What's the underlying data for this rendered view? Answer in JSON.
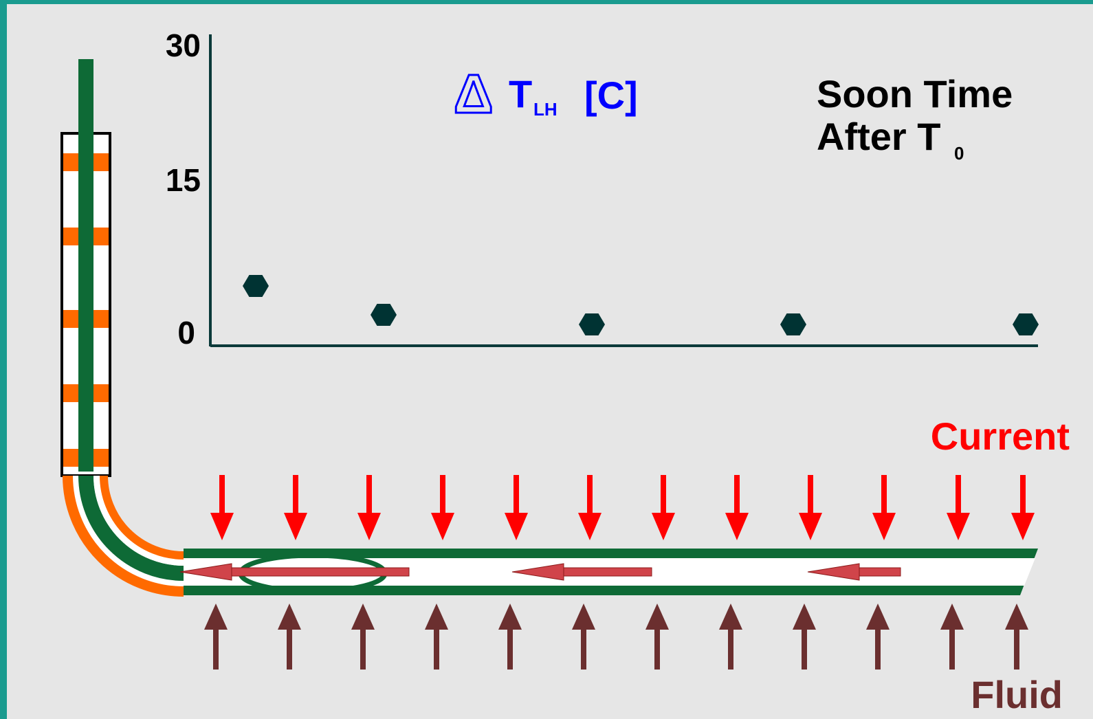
{
  "chart_data": {
    "type": "scatter",
    "title": "Soon Time",
    "title_line2": "After T",
    "title_sub": "0",
    "ylabel": "T",
    "ylabel_symbol": "Δ",
    "ylabel_sub": "LH",
    "ylabel_unit": "[C]",
    "yticks": [
      "30",
      "15",
      "0"
    ],
    "ylim": [
      0,
      30
    ],
    "grid": false,
    "points": [
      {
        "x": 1,
        "y": 5.0
      },
      {
        "x": 2,
        "y": 2.0
      },
      {
        "x": 3,
        "y": 1.0
      },
      {
        "x": 4,
        "y": 1.0
      },
      {
        "x": 5,
        "y": 1.0
      }
    ]
  },
  "labels": {
    "current": "Current",
    "fluid": "Fluid"
  },
  "colors": {
    "background": "#e6e6e6",
    "frame": "#1a9b8f",
    "pipe_green": "#0e6a36",
    "casing_orange": "#ff6a00",
    "current_red": "#ff0000",
    "fluid_brown": "#6b2f2f",
    "marker": "#003333",
    "ylabel_blue": "#0000ff"
  }
}
